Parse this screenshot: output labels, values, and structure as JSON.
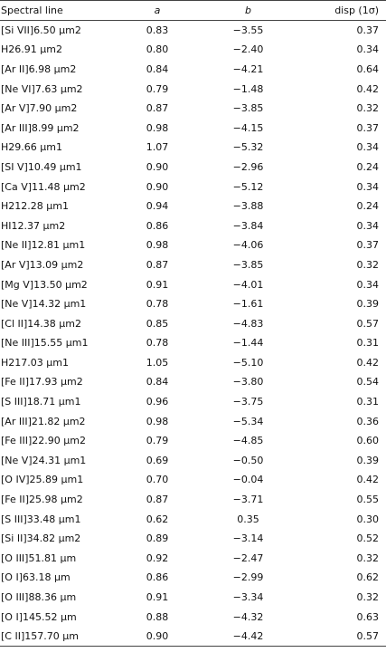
{
  "headers": {
    "line": "Spectral line",
    "a": "a",
    "b": "b",
    "disp": "disp (1σ)"
  },
  "rows": [
    {
      "line": "[Si VII]6.50 µm2",
      "a": "0.83",
      "b": "−3.55",
      "disp": "0.37"
    },
    {
      "line": "H26.91 µm2",
      "a": "0.80",
      "b": "−2.40",
      "disp": "0.34"
    },
    {
      "line": "[Ar II]6.98 µm2",
      "a": "0.84",
      "b": "−4.21",
      "disp": "0.64"
    },
    {
      "line": "[Ne VI]7.63 µm2",
      "a": "0.79",
      "b": "−1.48",
      "disp": "0.42"
    },
    {
      "line": "[Ar V]7.90 µm2",
      "a": "0.87",
      "b": "−3.85",
      "disp": "0.32"
    },
    {
      "line": "[Ar III]8.99 µm2",
      "a": "0.98",
      "b": "−4.15",
      "disp": "0.37"
    },
    {
      "line": "H29.66 µm1",
      "a": "1.07",
      "b": "−5.32",
      "disp": "0.34"
    },
    {
      "line": "[SI V]10.49 µm1",
      "a": "0.90",
      "b": "−2.96",
      "disp": "0.24"
    },
    {
      "line": "[Ca V]11.48 µm2",
      "a": "0.90",
      "b": "−5.12",
      "disp": "0.34"
    },
    {
      "line": "H212.28 µm1",
      "a": "0.94",
      "b": "−3.88",
      "disp": "0.24"
    },
    {
      "line": "HI12.37 µm2",
      "a": "0.86",
      "b": "−3.84",
      "disp": "0.34"
    },
    {
      "line": "[Ne II]12.81 µm1",
      "a": "0.98",
      "b": "−4.06",
      "disp": "0.37"
    },
    {
      "line": "[Ar V]13.09 µm2",
      "a": "0.87",
      "b": "−3.85",
      "disp": "0.32"
    },
    {
      "line": "[Mg V]13.50 µm2",
      "a": "0.91",
      "b": "−4.01",
      "disp": "0.34"
    },
    {
      "line": "[Ne V]14.32 µm1",
      "a": "0.78",
      "b": "−1.61",
      "disp": "0.39"
    },
    {
      "line": "[Cl II]14.38 µm2",
      "a": "0.85",
      "b": "−4.83",
      "disp": "0.57"
    },
    {
      "line": "[Ne III]15.55 µm1",
      "a": "0.78",
      "b": "−1.44",
      "disp": "0.31"
    },
    {
      "line": "H217.03 µm1",
      "a": "1.05",
      "b": "−5.10",
      "disp": "0.42"
    },
    {
      "line": "[Fe II]17.93 µm2",
      "a": "0.84",
      "b": "−3.80",
      "disp": "0.54"
    },
    {
      "line": "[S III]18.71 µm1",
      "a": "0.96",
      "b": "−3.75",
      "disp": "0.31"
    },
    {
      "line": "[Ar III]21.82 µm2",
      "a": "0.98",
      "b": "−5.34",
      "disp": "0.36"
    },
    {
      "line": "[Fe III]22.90 µm2",
      "a": "0.79",
      "b": "−4.85",
      "disp": "0.60"
    },
    {
      "line": "[Ne V]24.31 µm1",
      "a": "0.69",
      "b": "−0.50",
      "disp": "0.39"
    },
    {
      "line": "[O IV]25.89 µm1",
      "a": "0.70",
      "b": "−0.04",
      "disp": "0.42"
    },
    {
      "line": "[Fe II]25.98 µm2",
      "a": "0.87",
      "b": "−3.71",
      "disp": "0.55"
    },
    {
      "line": "[S III]33.48 µm1",
      "a": "0.62",
      "b": "0.35",
      "disp": "0.30"
    },
    {
      "line": "[Si II]34.82 µm2",
      "a": "0.89",
      "b": "−3.14",
      "disp": "0.52"
    },
    {
      "line": "[O III]51.81 µm",
      "a": "0.92",
      "b": "−2.47",
      "disp": "0.32"
    },
    {
      "line": "[O I]63.18 µm",
      "a": "0.86",
      "b": "−2.99",
      "disp": "0.62"
    },
    {
      "line": "[O III]88.36 µm",
      "a": "0.91",
      "b": "−3.34",
      "disp": "0.32"
    },
    {
      "line": "[O I]145.52 µm",
      "a": "0.88",
      "b": "−4.32",
      "disp": "0.63"
    },
    {
      "line": "[C II]157.70 µm",
      "a": "0.90",
      "b": "−4.42",
      "disp": "0.57"
    }
  ]
}
